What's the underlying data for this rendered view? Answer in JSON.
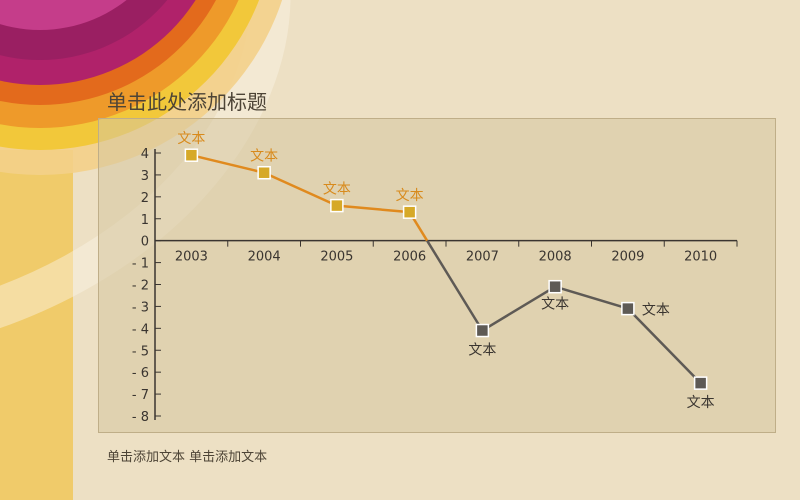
{
  "slide": {
    "title": "单击此处添加标题",
    "caption": "单击添加文本 单击添加文本"
  },
  "colors": {
    "background": "#ede0c4",
    "positive_line": "#e08a1e",
    "positive_marker": "#d6a928",
    "negative_line": "#5e5a55",
    "negative_marker": "#5e5a55",
    "axis": "#3a3530",
    "label_positive": "#d88a1c",
    "label_negative": "#3a3530"
  },
  "chart_data": {
    "type": "line",
    "categories": [
      "2003",
      "2004",
      "2005",
      "2006",
      "2007",
      "2008",
      "2009",
      "2010"
    ],
    "values": [
      3.9,
      3.1,
      1.6,
      1.3,
      -4.1,
      -2.1,
      -3.1,
      -6.5
    ],
    "data_labels": [
      "文本",
      "文本",
      "文本",
      "文本",
      "文本",
      "文本",
      "文本",
      "文本"
    ],
    "ylim": [
      -8,
      4
    ],
    "yticks": [
      4,
      3,
      2,
      1,
      0,
      -1,
      -2,
      -3,
      -4,
      -5,
      -6,
      -7,
      -8
    ],
    "ytick_labels": [
      "4",
      "3",
      "2",
      "1",
      "0",
      "- 1",
      "- 2",
      "- 3",
      "- 4",
      "- 5",
      "- 6",
      "- 7",
      "- 8"
    ],
    "xlabel": "",
    "ylabel": "",
    "grid": false
  }
}
